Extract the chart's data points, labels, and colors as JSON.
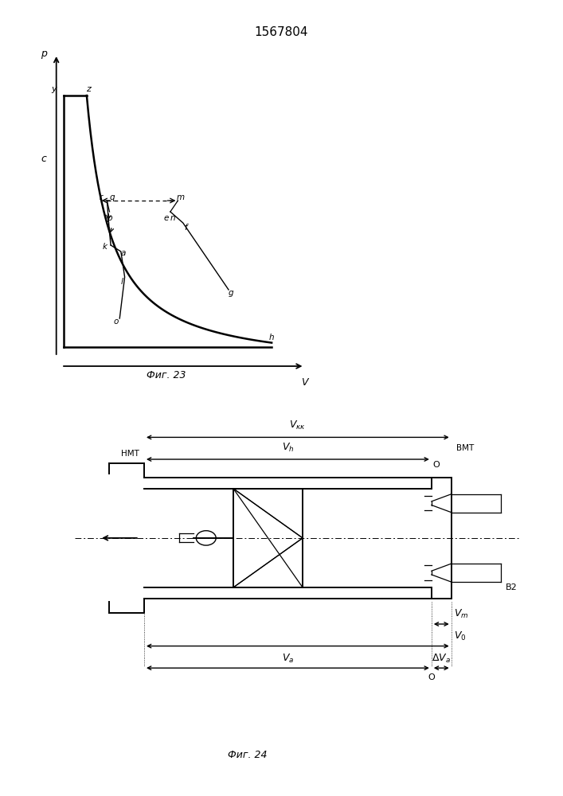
{
  "title": "1567804",
  "fig23_caption": "Фиг. 23",
  "fig24_caption": "Фиг. 24",
  "bg_color": "#ffffff",
  "line_color": "#000000"
}
